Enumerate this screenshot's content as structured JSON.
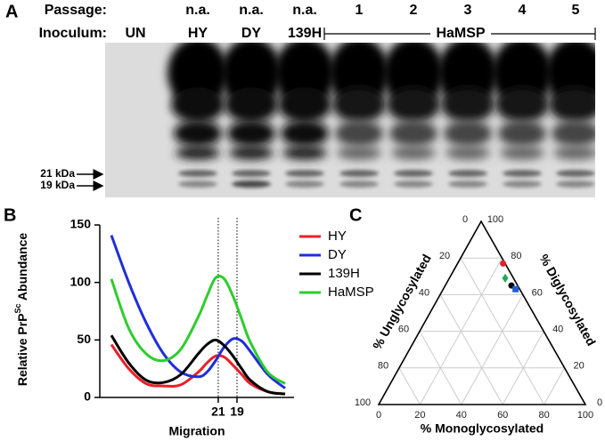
{
  "panel_labels": {
    "a": "A",
    "b": "B",
    "c": "C"
  },
  "blot": {
    "passage_label": "Passage:",
    "inoculum_label": "Inoculum:",
    "passage": [
      null,
      "n.a.",
      "n.a.",
      "n.a.",
      "1",
      "2",
      "3",
      "4",
      "5"
    ],
    "inoculum": [
      "UN",
      "HY",
      "DY",
      "139H"
    ],
    "group_label": "HaMSP",
    "markers": [
      "21 kDa",
      "19 kDa"
    ]
  },
  "chart_data": [
    {
      "type": "line",
      "y_label_prefix": "Relative PrP",
      "y_label_sup": "Sc",
      "y_label_suffix": " Abundance",
      "x_label": "Migration",
      "x": [
        0,
        10,
        20,
        30,
        40,
        50,
        55,
        60,
        65,
        70,
        75,
        80,
        90,
        100
      ],
      "xlim": [
        0,
        100
      ],
      "xticks": [
        {
          "value": 61.5,
          "label": "21"
        },
        {
          "value": 72.3,
          "label": "19"
        }
      ],
      "ylim": [
        0,
        150
      ],
      "yticks": [
        0,
        50,
        100,
        150
      ],
      "series": [
        {
          "name": "HY",
          "color": "#e8202a",
          "values": [
            46,
            25,
            12,
            10,
            11,
            22,
            30,
            36,
            35,
            28,
            20,
            12,
            5,
            3
          ]
        },
        {
          "name": "DY",
          "color": "#1f2fd6",
          "values": [
            141,
            100,
            65,
            38,
            22,
            18,
            22,
            32,
            44,
            51,
            49,
            40,
            20,
            8
          ]
        },
        {
          "name": "139H",
          "color": "#000000",
          "values": [
            54,
            30,
            15,
            13,
            20,
            38,
            46,
            50,
            45,
            36,
            25,
            15,
            5,
            3
          ]
        },
        {
          "name": "HaMSP",
          "color": "#2ecc2e",
          "values": [
            103,
            60,
            38,
            32,
            42,
            70,
            88,
            104,
            103,
            88,
            68,
            48,
            22,
            12
          ]
        }
      ]
    },
    {
      "type": "ternary",
      "axes": {
        "unglycosylated": {
          "label": "% Unglycosylated",
          "ticks": [
            0,
            20,
            40,
            60,
            80,
            100
          ]
        },
        "monoglycosylated": {
          "label": "% Monoglycosylated",
          "ticks": [
            0,
            20,
            40,
            60,
            80,
            100
          ]
        },
        "diglycosylated": {
          "label": "% Diglycosylated",
          "ticks": [
            0,
            20,
            40,
            60,
            80,
            100
          ]
        }
      },
      "series": [
        {
          "name": "HY",
          "color": "#e8202a",
          "marker": "circle",
          "unglycosylated": 1,
          "monoglycosylated": 22,
          "diglycosylated": 77
        },
        {
          "name": "HaMSP",
          "color": "#1fa85a",
          "marker": "diamond",
          "unglycosylated": 4,
          "monoglycosylated": 27,
          "diglycosylated": 69
        },
        {
          "name": "139H",
          "color": "#000000",
          "marker": "circle",
          "unglycosylated": 3,
          "monoglycosylated": 32,
          "diglycosylated": 65
        },
        {
          "name": "DY",
          "color": "#1f5fd6",
          "marker": "square",
          "unglycosylated": 2,
          "monoglycosylated": 35,
          "diglycosylated": 63
        }
      ]
    }
  ]
}
